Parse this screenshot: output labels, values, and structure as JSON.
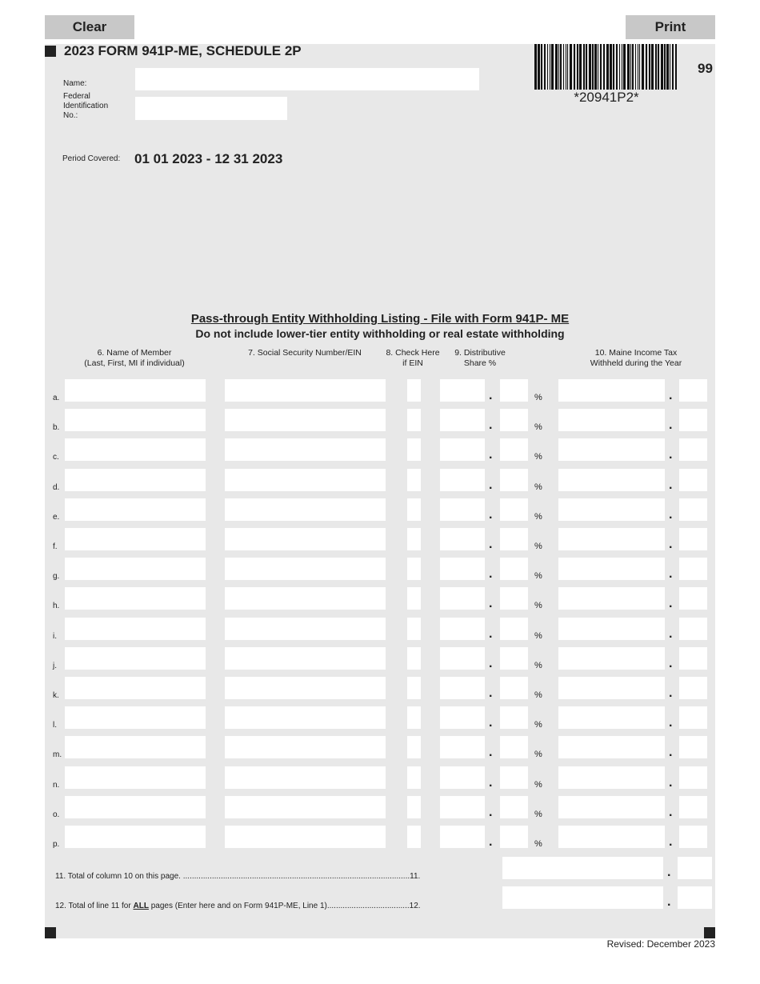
{
  "buttons": {
    "clear": "Clear",
    "print": "Print"
  },
  "form": {
    "title": "2023 FORM 941P-ME, SCHEDULE 2P",
    "barcode_text": "*20941P2*",
    "page_code": "99",
    "name_label": "Name:",
    "fein_label_1": "Federal",
    "fein_label_2": "Identification",
    "fein_label_3": "No.:",
    "name_value": "",
    "fein_value": "",
    "period_label": "Period Covered:",
    "period_value": "01 01 2023 - 12 31 2023"
  },
  "listing": {
    "title": "Pass-through Entity Withholding Listing - File with Form 941P- ME",
    "subtitle": "Do not include lower-tier entity withholding or real estate withholding",
    "columns": {
      "c6a": "6. Name of Member",
      "c6b": "(Last, First, MI if individual)",
      "c7": "7. Social Security Number/EIN",
      "c8a": "8. Check Here",
      "c8b": "if EIN",
      "c9a": "9. Distributive",
      "c9b": "Share %",
      "c10a": "10. Maine Income Tax",
      "c10b": "Withheld during the Year"
    },
    "rows": [
      "a.",
      "b.",
      "c.",
      "d.",
      "e.",
      "f.",
      "g.",
      "h.",
      "i.",
      "j.",
      "k.",
      "l.",
      "m.",
      "n.",
      "o.",
      "p."
    ],
    "percent": "%",
    "dot": "."
  },
  "totals": {
    "line11_text": "11.  Total of column 10 on this page. ......................................................................................................11.",
    "line12_pre": "12.  Total of line 11 for ",
    "line12_bold": "ALL",
    "line12_post": " pages (Enter here and on Form 941P-ME, Line 1).....................................12.",
    "dot": "."
  },
  "footer": {
    "revised": "Revised: December 2023"
  }
}
